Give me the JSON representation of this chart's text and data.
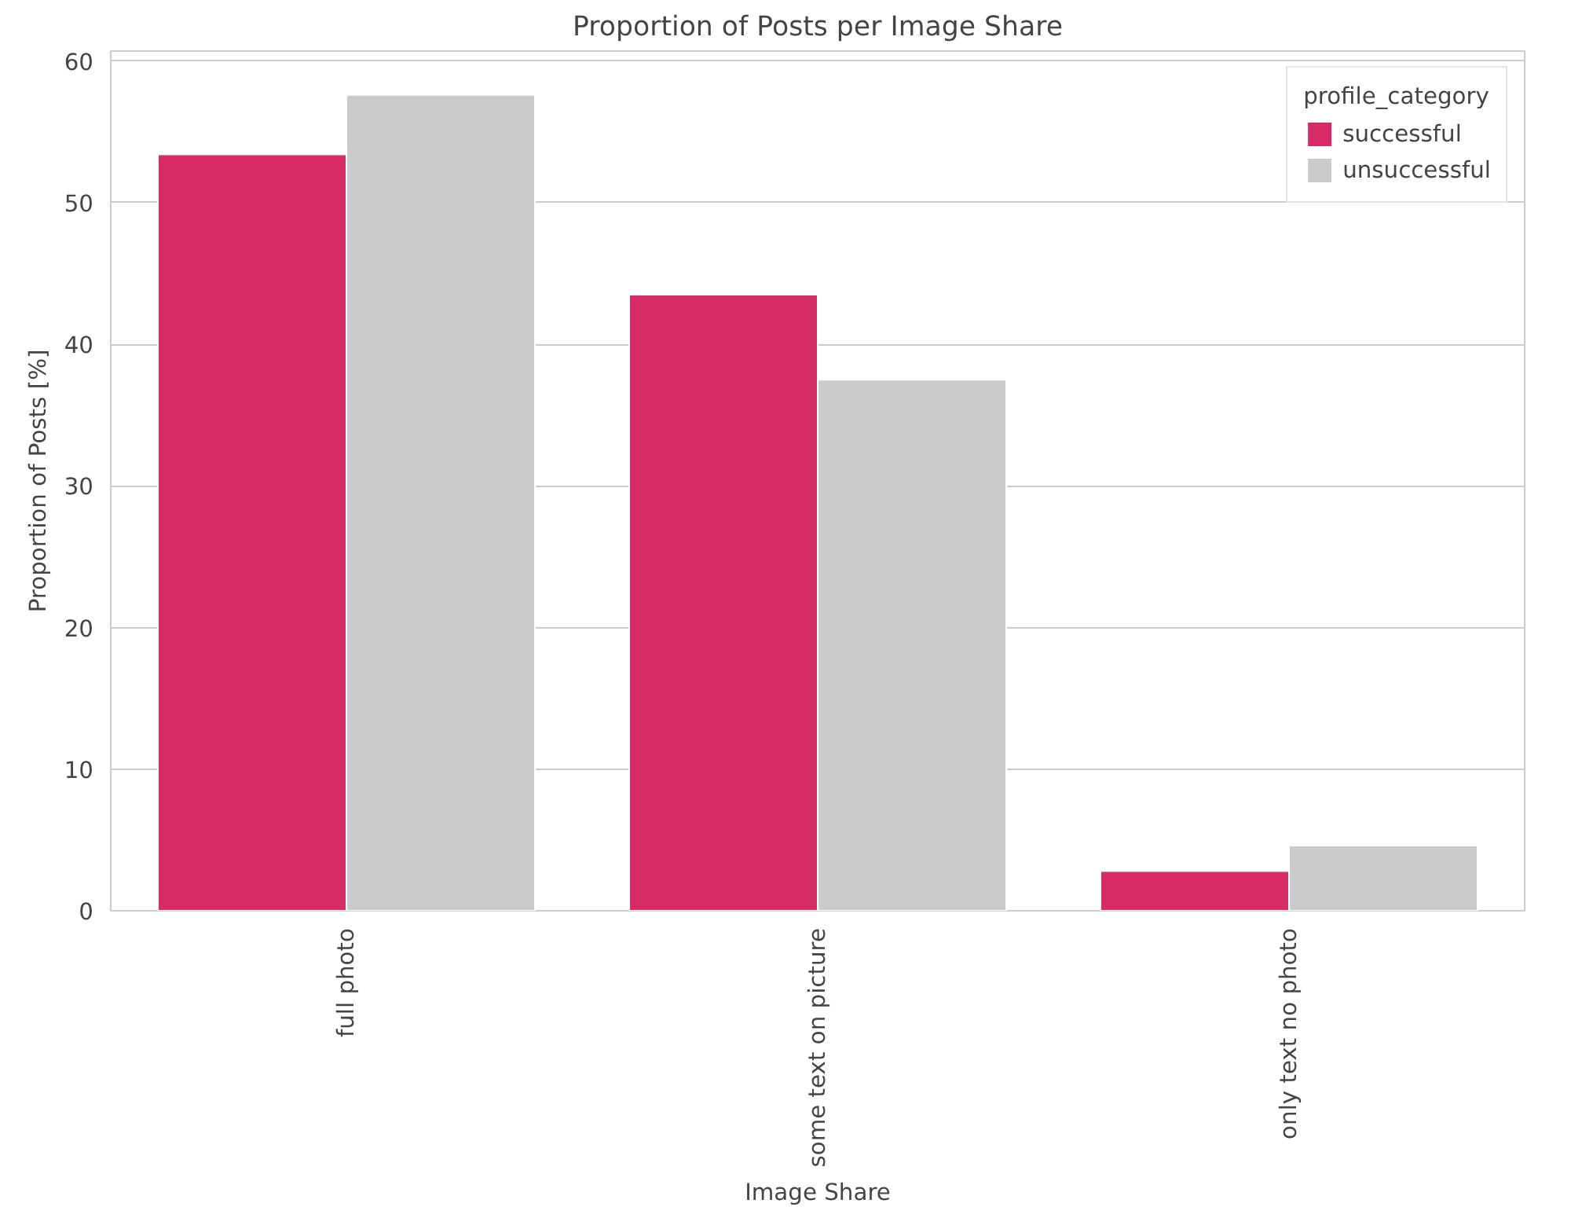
{
  "chart_data": {
    "type": "bar",
    "title": "Proportion of Posts per Image Share",
    "xlabel": "Image Share",
    "ylabel": "Proportion of Posts [%]",
    "legend_title": "profile_category",
    "categories": [
      "full photo",
      "some text on picture",
      "only text no photo"
    ],
    "series": [
      {
        "name": "successful",
        "color": "#d62b67",
        "values": [
          53.4,
          43.5,
          2.8
        ]
      },
      {
        "name": "unsuccessful",
        "color": "#cbcbcb",
        "values": [
          57.6,
          37.5,
          4.6
        ]
      }
    ],
    "ylim": [
      0,
      60.7
    ],
    "yticks": [
      0,
      10,
      20,
      30,
      40,
      50,
      60
    ],
    "grid": "y",
    "legend": "top right"
  }
}
